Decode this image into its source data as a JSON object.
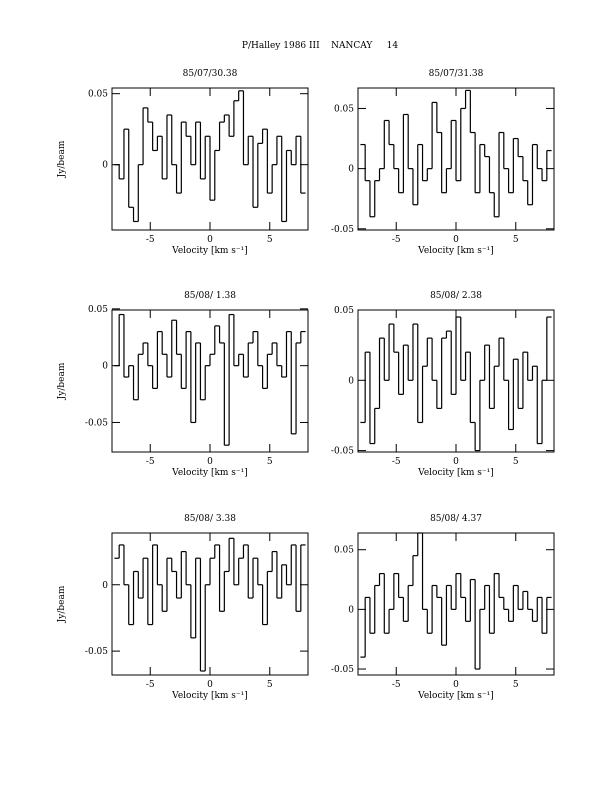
{
  "title": "P/Halley 1986 III    NANCAY     14",
  "chart_data": [
    {
      "type": "step",
      "title": "85/07/30.38",
      "y_label": "Jy/beam",
      "x_label": "Velocity [km s⁻¹]",
      "color": "#000000",
      "xlim": [
        -8.2,
        8.2
      ],
      "xticks": [
        -5,
        0,
        5
      ],
      "ylim": [
        -0.046,
        0.054
      ],
      "yticks": [
        0,
        0.05
      ],
      "x": [
        -7.8,
        -7.4,
        -7.0,
        -6.6,
        -6.2,
        -5.8,
        -5.4,
        -5.0,
        -4.6,
        -4.2,
        -3.8,
        -3.4,
        -3.0,
        -2.6,
        -2.2,
        -1.8,
        -1.4,
        -1.0,
        -0.6,
        -0.2,
        0.2,
        0.6,
        1.0,
        1.4,
        1.8,
        2.2,
        2.6,
        3.0,
        3.4,
        3.8,
        4.2,
        4.6,
        5.0,
        5.4,
        5.8,
        6.2,
        6.6,
        7.0,
        7.4,
        7.8
      ],
      "values": [
        0.0,
        -0.01,
        0.025,
        -0.03,
        -0.04,
        0.0,
        0.04,
        0.03,
        0.01,
        0.02,
        -0.01,
        0.035,
        0.0,
        -0.02,
        0.03,
        0.02,
        0.0,
        0.03,
        -0.01,
        0.02,
        -0.025,
        0.01,
        0.03,
        0.035,
        0.02,
        0.045,
        0.052,
        0.0,
        0.02,
        -0.03,
        0.015,
        0.025,
        -0.02,
        0.0,
        0.02,
        -0.04,
        0.01,
        0.0,
        0.02,
        -0.02
      ]
    },
    {
      "type": "step",
      "title": "85/07/31.38",
      "x_label": "Velocity [km s⁻¹]",
      "color": "#000000",
      "xlim": [
        -8.2,
        8.2
      ],
      "xticks": [
        -5,
        0,
        5
      ],
      "ylim": [
        -0.051,
        0.067
      ],
      "yticks": [
        -0.05,
        0,
        0.05
      ],
      "x": [
        -7.8,
        -7.4,
        -7.0,
        -6.6,
        -6.2,
        -5.8,
        -5.4,
        -5.0,
        -4.6,
        -4.2,
        -3.8,
        -3.4,
        -3.0,
        -2.6,
        -2.2,
        -1.8,
        -1.4,
        -1.0,
        -0.6,
        -0.2,
        0.2,
        0.6,
        1.0,
        1.4,
        1.8,
        2.2,
        2.6,
        3.0,
        3.4,
        3.8,
        4.2,
        4.6,
        5.0,
        5.4,
        5.8,
        6.2,
        6.6,
        7.0,
        7.4,
        7.8
      ],
      "values": [
        0.02,
        -0.01,
        -0.04,
        -0.01,
        0.0,
        0.04,
        0.02,
        0.0,
        -0.02,
        0.045,
        0.0,
        -0.03,
        0.02,
        -0.01,
        0.0,
        0.055,
        0.03,
        -0.02,
        0.0,
        0.04,
        -0.01,
        0.05,
        0.065,
        0.03,
        -0.02,
        0.02,
        0.01,
        -0.02,
        -0.04,
        0.03,
        0.0,
        -0.02,
        0.025,
        0.01,
        -0.01,
        -0.03,
        0.02,
        0.0,
        -0.01,
        0.015
      ]
    },
    {
      "type": "step",
      "title": "85/08/ 1.38",
      "y_label": "Jy/beam",
      "x_label": "Velocity [km s⁻¹]",
      "color": "#000000",
      "xlim": [
        -8.2,
        8.2
      ],
      "xticks": [
        -5,
        0,
        5
      ],
      "ylim": [
        -0.076,
        0.049
      ],
      "yticks": [
        -0.05,
        0,
        0.05
      ],
      "x": [
        -7.8,
        -7.4,
        -7.0,
        -6.6,
        -6.2,
        -5.8,
        -5.4,
        -5.0,
        -4.6,
        -4.2,
        -3.8,
        -3.4,
        -3.0,
        -2.6,
        -2.2,
        -1.8,
        -1.4,
        -1.0,
        -0.6,
        -0.2,
        0.2,
        0.6,
        1.0,
        1.4,
        1.8,
        2.2,
        2.6,
        3.0,
        3.4,
        3.8,
        4.2,
        4.6,
        5.0,
        5.4,
        5.8,
        6.2,
        6.6,
        7.0,
        7.4,
        7.8
      ],
      "values": [
        0.0,
        0.045,
        -0.01,
        0.0,
        -0.03,
        0.01,
        0.02,
        0.0,
        -0.02,
        0.03,
        0.01,
        -0.01,
        0.04,
        0.01,
        -0.02,
        0.03,
        -0.05,
        0.02,
        -0.03,
        0.0,
        0.01,
        0.035,
        0.02,
        -0.07,
        0.045,
        0.0,
        0.01,
        -0.01,
        0.02,
        0.03,
        0.0,
        -0.02,
        0.01,
        0.02,
        0.0,
        -0.01,
        0.03,
        -0.06,
        0.02,
        0.03
      ]
    },
    {
      "type": "step",
      "title": "85/08/ 2.38",
      "x_label": "Velocity [km s⁻¹]",
      "color": "#000000",
      "xlim": [
        -8.2,
        8.2
      ],
      "xticks": [
        -5,
        0,
        5
      ],
      "ylim": [
        -0.051,
        0.05
      ],
      "yticks": [
        -0.05,
        0,
        0.05
      ],
      "x": [
        -7.8,
        -7.4,
        -7.0,
        -6.6,
        -6.2,
        -5.8,
        -5.4,
        -5.0,
        -4.6,
        -4.2,
        -3.8,
        -3.4,
        -3.0,
        -2.6,
        -2.2,
        -1.8,
        -1.4,
        -1.0,
        -0.6,
        -0.2,
        0.2,
        0.6,
        1.0,
        1.4,
        1.8,
        2.2,
        2.6,
        3.0,
        3.4,
        3.8,
        4.2,
        4.6,
        5.0,
        5.4,
        5.8,
        6.2,
        6.6,
        7.0,
        7.4,
        7.8
      ],
      "values": [
        -0.03,
        0.02,
        -0.045,
        -0.02,
        0.03,
        0.0,
        0.04,
        0.02,
        -0.01,
        0.025,
        0.0,
        0.04,
        -0.03,
        0.01,
        0.03,
        0.0,
        -0.02,
        0.03,
        0.035,
        -0.01,
        0.045,
        0.0,
        0.02,
        -0.03,
        -0.05,
        0.0,
        0.025,
        -0.02,
        0.01,
        0.03,
        0.0,
        -0.035,
        0.015,
        -0.02,
        0.02,
        0.0,
        0.01,
        -0.045,
        0.0,
        0.045
      ]
    },
    {
      "type": "step",
      "title": "85/08/ 3.38",
      "y_label": "Jy/beam",
      "x_label": "Velocity [km s⁻¹]",
      "color": "#000000",
      "xlim": [
        -8.2,
        8.2
      ],
      "xticks": [
        -5,
        0,
        5
      ],
      "ylim": [
        -0.068,
        0.039
      ],
      "yticks": [
        -0.05,
        0
      ],
      "x": [
        -7.8,
        -7.4,
        -7.0,
        -6.6,
        -6.2,
        -5.8,
        -5.4,
        -5.0,
        -4.6,
        -4.2,
        -3.8,
        -3.4,
        -3.0,
        -2.6,
        -2.2,
        -1.8,
        -1.4,
        -1.0,
        -0.6,
        -0.2,
        0.2,
        0.6,
        1.0,
        1.4,
        1.8,
        2.2,
        2.6,
        3.0,
        3.4,
        3.8,
        4.2,
        4.6,
        5.0,
        5.4,
        5.8,
        6.2,
        6.6,
        7.0,
        7.4,
        7.8
      ],
      "values": [
        0.02,
        0.03,
        0.0,
        -0.03,
        0.01,
        -0.01,
        0.02,
        -0.03,
        0.03,
        0.0,
        -0.02,
        0.02,
        0.01,
        -0.01,
        0.025,
        0.0,
        -0.04,
        0.02,
        -0.065,
        0.0,
        0.02,
        0.03,
        -0.02,
        0.01,
        0.035,
        0.0,
        0.02,
        0.03,
        -0.01,
        0.02,
        0.0,
        -0.03,
        0.01,
        0.025,
        -0.01,
        0.015,
        0.0,
        0.03,
        -0.02,
        0.03
      ]
    },
    {
      "type": "step",
      "title": "85/08/ 4.37",
      "x_label": "Velocity [km s⁻¹]",
      "color": "#000000",
      "xlim": [
        -8.2,
        8.2
      ],
      "xticks": [
        -5,
        0,
        5
      ],
      "ylim": [
        -0.055,
        0.064
      ],
      "yticks": [
        -0.05,
        0,
        0.05
      ],
      "x": [
        -7.8,
        -7.4,
        -7.0,
        -6.6,
        -6.2,
        -5.8,
        -5.4,
        -5.0,
        -4.6,
        -4.2,
        -3.8,
        -3.4,
        -3.0,
        -2.6,
        -2.2,
        -1.8,
        -1.4,
        -1.0,
        -0.6,
        -0.2,
        0.2,
        0.6,
        1.0,
        1.4,
        1.8,
        2.2,
        2.6,
        3.0,
        3.4,
        3.8,
        4.2,
        4.6,
        5.0,
        5.4,
        5.8,
        6.2,
        6.6,
        7.0,
        7.4,
        7.8
      ],
      "values": [
        -0.04,
        0.01,
        -0.02,
        0.02,
        0.03,
        -0.02,
        0.0,
        0.03,
        0.01,
        -0.01,
        0.02,
        0.045,
        0.065,
        0.0,
        -0.02,
        0.02,
        0.01,
        -0.03,
        0.02,
        0.0,
        0.03,
        0.01,
        -0.01,
        0.025,
        -0.05,
        0.0,
        0.02,
        -0.02,
        0.03,
        0.01,
        0.0,
        -0.01,
        0.02,
        0.0,
        0.015,
        0.0,
        -0.01,
        0.01,
        -0.02,
        0.01
      ]
    }
  ]
}
